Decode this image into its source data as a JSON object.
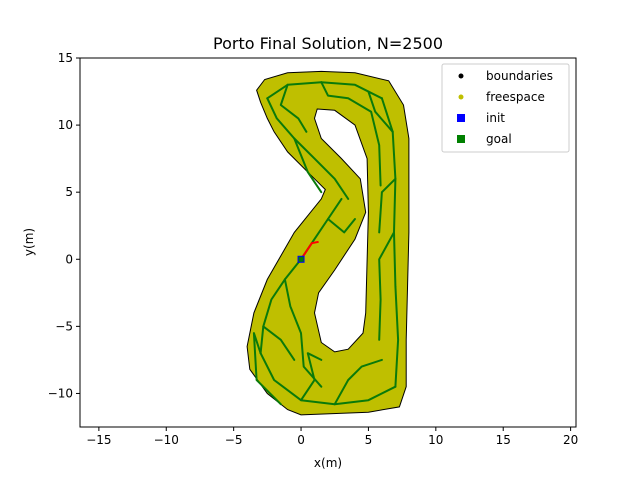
{
  "chart_data": {
    "type": "scatter",
    "title": "Porto Final Solution, N=2500",
    "xlabel": "x(m)",
    "ylabel": "y(m)",
    "xlim": [
      -16.4,
      20.4
    ],
    "ylim": [
      -12.5,
      15.0
    ],
    "xticks": [
      -15,
      -10,
      -5,
      0,
      5,
      10,
      15,
      20
    ],
    "yticks": [
      15,
      10,
      5,
      0,
      -5,
      -10
    ],
    "xtick_labels": [
      "−15",
      "−10",
      "−5",
      "0",
      "5",
      "10",
      "15",
      "20"
    ],
    "ytick_labels": [
      "15",
      "10",
      "5",
      "0",
      "−5",
      "−10"
    ],
    "grid": false,
    "legend_position": "top-right",
    "legend": [
      {
        "label": "boundaries",
        "marker": "dot",
        "color": "#000000"
      },
      {
        "label": "freespace",
        "marker": "dot",
        "color": "#bfbf00"
      },
      {
        "label": "init",
        "marker": "square",
        "color": "#0000ff"
      },
      {
        "label": "goal",
        "marker": "square",
        "color": "#008000"
      }
    ],
    "outer_boundary": [
      [
        -3.0,
        11.7
      ],
      [
        -3.3,
        12.6
      ],
      [
        -2.7,
        13.4
      ],
      [
        -1.0,
        13.9
      ],
      [
        1.5,
        14.0
      ],
      [
        4.0,
        13.9
      ],
      [
        6.5,
        13.3
      ],
      [
        7.6,
        11.5
      ],
      [
        8.0,
        9.0
      ],
      [
        8.0,
        2.0
      ],
      [
        7.8,
        -6.0
      ],
      [
        7.8,
        -9.5
      ],
      [
        7.3,
        -11.0
      ],
      [
        5.0,
        -11.4
      ],
      [
        0.0,
        -11.6
      ],
      [
        -1.0,
        -11.2
      ],
      [
        -2.5,
        -10.0
      ],
      [
        -3.8,
        -8.2
      ],
      [
        -4.0,
        -6.5
      ],
      [
        -3.5,
        -4.0
      ],
      [
        -2.5,
        -1.5
      ],
      [
        -0.5,
        2.0
      ],
      [
        1.5,
        4.5
      ],
      [
        1.8,
        5.2
      ],
      [
        1.0,
        6.0
      ],
      [
        -1.0,
        8.0
      ],
      [
        -2.0,
        9.5
      ],
      [
        -2.5,
        10.5
      ]
    ],
    "inner_boundary": [
      [
        1.2,
        11.2
      ],
      [
        2.5,
        11.1
      ],
      [
        4.0,
        10.0
      ],
      [
        4.9,
        7.5
      ],
      [
        5.0,
        3.5
      ],
      [
        4.8,
        -4.0
      ],
      [
        4.6,
        -5.5
      ],
      [
        3.5,
        -6.7
      ],
      [
        2.5,
        -6.9
      ],
      [
        1.5,
        -6.2
      ],
      [
        1.0,
        -4.0
      ],
      [
        1.3,
        -2.5
      ],
      [
        2.5,
        -0.8
      ],
      [
        4.0,
        1.5
      ],
      [
        4.8,
        3.5
      ],
      [
        4.4,
        6.0
      ],
      [
        3.0,
        7.5
      ],
      [
        1.5,
        9.0
      ],
      [
        1.0,
        10.5
      ]
    ],
    "tree_branches": [
      [
        [
          0.0,
          0.0
        ],
        [
          -1.2,
          -1.5
        ],
        [
          -2.2,
          -3.0
        ],
        [
          -2.8,
          -5.0
        ],
        [
          -3.0,
          -7.0
        ]
      ],
      [
        [
          -3.0,
          -7.0
        ],
        [
          -2.0,
          -9.0
        ],
        [
          0.0,
          -10.5
        ],
        [
          2.5,
          -10.8
        ],
        [
          5.0,
          -10.5
        ],
        [
          7.0,
          -9.5
        ]
      ],
      [
        [
          7.0,
          -9.5
        ],
        [
          7.2,
          -6.0
        ],
        [
          7.0,
          -2.0
        ],
        [
          6.9,
          2.0
        ],
        [
          7.0,
          6.0
        ],
        [
          6.8,
          9.5
        ],
        [
          6.0,
          12.0
        ]
      ],
      [
        [
          6.0,
          12.0
        ],
        [
          4.0,
          13.0
        ],
        [
          1.5,
          13.2
        ],
        [
          -1.0,
          13.0
        ],
        [
          -2.5,
          12.0
        ]
      ],
      [
        [
          -2.5,
          12.0
        ],
        [
          -1.8,
          10.5
        ],
        [
          -0.5,
          9.0
        ],
        [
          1.0,
          7.5
        ],
        [
          2.5,
          6.0
        ],
        [
          3.5,
          4.5
        ]
      ],
      [
        [
          0.0,
          0.0
        ],
        [
          1.0,
          1.5
        ],
        [
          2.0,
          3.0
        ],
        [
          3.0,
          4.5
        ]
      ],
      [
        [
          -1.2,
          -1.5
        ],
        [
          -0.8,
          -3.5
        ],
        [
          0.0,
          -5.5
        ],
        [
          0.2,
          -8.0
        ],
        [
          1.5,
          -9.5
        ]
      ],
      [
        [
          2.5,
          -10.8
        ],
        [
          3.5,
          -9.0
        ],
        [
          4.5,
          -8.0
        ],
        [
          6.0,
          -7.5
        ]
      ],
      [
        [
          -2.8,
          -5.0
        ],
        [
          -1.5,
          -6.0
        ],
        [
          -0.5,
          -7.5
        ]
      ],
      [
        [
          7.0,
          6.0
        ],
        [
          6.0,
          5.0
        ],
        [
          5.8,
          2.0
        ]
      ],
      [
        [
          6.9,
          2.0
        ],
        [
          5.8,
          0.0
        ],
        [
          5.9,
          -3.0
        ],
        [
          5.8,
          -6.0
        ]
      ],
      [
        [
          6.8,
          9.5
        ],
        [
          5.5,
          11.0
        ],
        [
          5.0,
          12.5
        ]
      ],
      [
        [
          1.5,
          13.2
        ],
        [
          2.0,
          12.2
        ],
        [
          3.5,
          12.0
        ],
        [
          5.2,
          11.0
        ],
        [
          5.8,
          8.5
        ],
        [
          5.9,
          5.5
        ]
      ],
      [
        [
          -1.0,
          13.0
        ],
        [
          -1.5,
          11.5
        ],
        [
          -0.2,
          10.5
        ],
        [
          0.4,
          9.5
        ]
      ],
      [
        [
          -0.5,
          9.0
        ],
        [
          0.5,
          6.5
        ],
        [
          1.5,
          5.0
        ]
      ],
      [
        [
          -3.0,
          -7.0
        ],
        [
          -3.5,
          -5.5
        ],
        [
          -3.3,
          -9.0
        ],
        [
          -1.5,
          -10.8
        ]
      ],
      [
        [
          0.0,
          -10.5
        ],
        [
          1.0,
          -9.0
        ],
        [
          0.5,
          -7.0
        ],
        [
          1.5,
          -7.5
        ]
      ],
      [
        [
          2.0,
          3.0
        ],
        [
          3.2,
          2.0
        ],
        [
          4.0,
          3.0
        ]
      ]
    ],
    "solution_path": [
      [
        0.0,
        0.0
      ],
      [
        0.4,
        0.6
      ],
      [
        0.8,
        1.2
      ],
      [
        1.3,
        1.3
      ]
    ],
    "init": [
      0.0,
      0.0
    ],
    "goal": [
      0.0,
      0.0
    ]
  }
}
